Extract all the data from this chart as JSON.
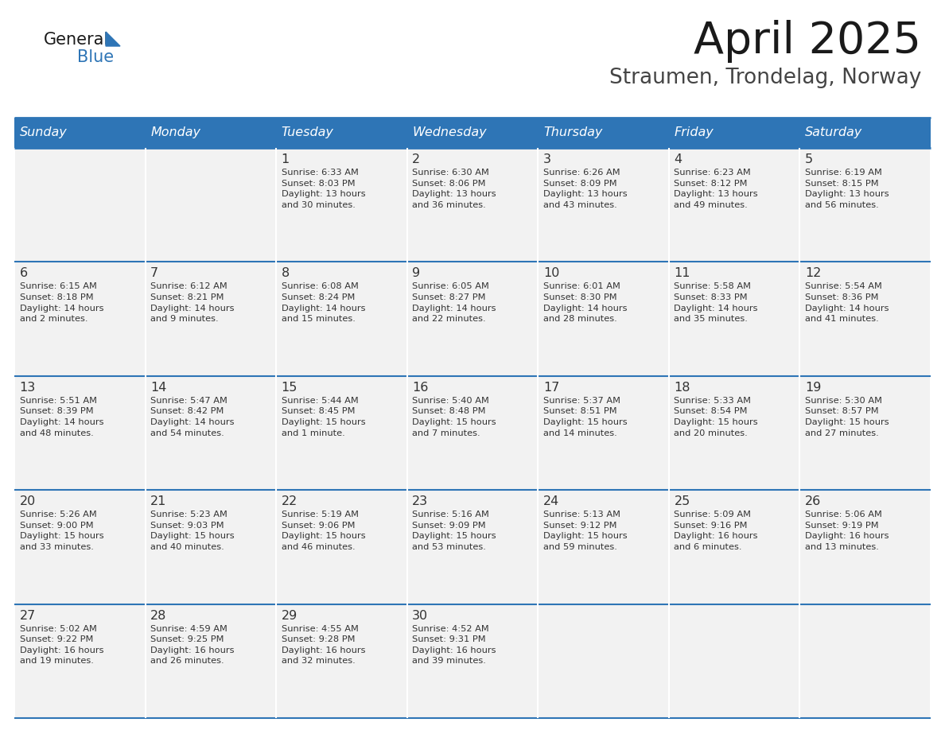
{
  "title": "April 2025",
  "subtitle": "Straumen, Trondelag, Norway",
  "header_color": "#2E75B6",
  "header_text_color": "#FFFFFF",
  "cell_bg": "#F2F2F2",
  "border_color": "#2E75B6",
  "text_color": "#333333",
  "days_of_week": [
    "Sunday",
    "Monday",
    "Tuesday",
    "Wednesday",
    "Thursday",
    "Friday",
    "Saturday"
  ],
  "weeks": [
    [
      {
        "day": "",
        "info": ""
      },
      {
        "day": "",
        "info": ""
      },
      {
        "day": "1",
        "info": "Sunrise: 6:33 AM\nSunset: 8:03 PM\nDaylight: 13 hours\nand 30 minutes."
      },
      {
        "day": "2",
        "info": "Sunrise: 6:30 AM\nSunset: 8:06 PM\nDaylight: 13 hours\nand 36 minutes."
      },
      {
        "day": "3",
        "info": "Sunrise: 6:26 AM\nSunset: 8:09 PM\nDaylight: 13 hours\nand 43 minutes."
      },
      {
        "day": "4",
        "info": "Sunrise: 6:23 AM\nSunset: 8:12 PM\nDaylight: 13 hours\nand 49 minutes."
      },
      {
        "day": "5",
        "info": "Sunrise: 6:19 AM\nSunset: 8:15 PM\nDaylight: 13 hours\nand 56 minutes."
      }
    ],
    [
      {
        "day": "6",
        "info": "Sunrise: 6:15 AM\nSunset: 8:18 PM\nDaylight: 14 hours\nand 2 minutes."
      },
      {
        "day": "7",
        "info": "Sunrise: 6:12 AM\nSunset: 8:21 PM\nDaylight: 14 hours\nand 9 minutes."
      },
      {
        "day": "8",
        "info": "Sunrise: 6:08 AM\nSunset: 8:24 PM\nDaylight: 14 hours\nand 15 minutes."
      },
      {
        "day": "9",
        "info": "Sunrise: 6:05 AM\nSunset: 8:27 PM\nDaylight: 14 hours\nand 22 minutes."
      },
      {
        "day": "10",
        "info": "Sunrise: 6:01 AM\nSunset: 8:30 PM\nDaylight: 14 hours\nand 28 minutes."
      },
      {
        "day": "11",
        "info": "Sunrise: 5:58 AM\nSunset: 8:33 PM\nDaylight: 14 hours\nand 35 minutes."
      },
      {
        "day": "12",
        "info": "Sunrise: 5:54 AM\nSunset: 8:36 PM\nDaylight: 14 hours\nand 41 minutes."
      }
    ],
    [
      {
        "day": "13",
        "info": "Sunrise: 5:51 AM\nSunset: 8:39 PM\nDaylight: 14 hours\nand 48 minutes."
      },
      {
        "day": "14",
        "info": "Sunrise: 5:47 AM\nSunset: 8:42 PM\nDaylight: 14 hours\nand 54 minutes."
      },
      {
        "day": "15",
        "info": "Sunrise: 5:44 AM\nSunset: 8:45 PM\nDaylight: 15 hours\nand 1 minute."
      },
      {
        "day": "16",
        "info": "Sunrise: 5:40 AM\nSunset: 8:48 PM\nDaylight: 15 hours\nand 7 minutes."
      },
      {
        "day": "17",
        "info": "Sunrise: 5:37 AM\nSunset: 8:51 PM\nDaylight: 15 hours\nand 14 minutes."
      },
      {
        "day": "18",
        "info": "Sunrise: 5:33 AM\nSunset: 8:54 PM\nDaylight: 15 hours\nand 20 minutes."
      },
      {
        "day": "19",
        "info": "Sunrise: 5:30 AM\nSunset: 8:57 PM\nDaylight: 15 hours\nand 27 minutes."
      }
    ],
    [
      {
        "day": "20",
        "info": "Sunrise: 5:26 AM\nSunset: 9:00 PM\nDaylight: 15 hours\nand 33 minutes."
      },
      {
        "day": "21",
        "info": "Sunrise: 5:23 AM\nSunset: 9:03 PM\nDaylight: 15 hours\nand 40 minutes."
      },
      {
        "day": "22",
        "info": "Sunrise: 5:19 AM\nSunset: 9:06 PM\nDaylight: 15 hours\nand 46 minutes."
      },
      {
        "day": "23",
        "info": "Sunrise: 5:16 AM\nSunset: 9:09 PM\nDaylight: 15 hours\nand 53 minutes."
      },
      {
        "day": "24",
        "info": "Sunrise: 5:13 AM\nSunset: 9:12 PM\nDaylight: 15 hours\nand 59 minutes."
      },
      {
        "day": "25",
        "info": "Sunrise: 5:09 AM\nSunset: 9:16 PM\nDaylight: 16 hours\nand 6 minutes."
      },
      {
        "day": "26",
        "info": "Sunrise: 5:06 AM\nSunset: 9:19 PM\nDaylight: 16 hours\nand 13 minutes."
      }
    ],
    [
      {
        "day": "27",
        "info": "Sunrise: 5:02 AM\nSunset: 9:22 PM\nDaylight: 16 hours\nand 19 minutes."
      },
      {
        "day": "28",
        "info": "Sunrise: 4:59 AM\nSunset: 9:25 PM\nDaylight: 16 hours\nand 26 minutes."
      },
      {
        "day": "29",
        "info": "Sunrise: 4:55 AM\nSunset: 9:28 PM\nDaylight: 16 hours\nand 32 minutes."
      },
      {
        "day": "30",
        "info": "Sunrise: 4:52 AM\nSunset: 9:31 PM\nDaylight: 16 hours\nand 39 minutes."
      },
      {
        "day": "",
        "info": ""
      },
      {
        "day": "",
        "info": ""
      },
      {
        "day": "",
        "info": ""
      }
    ]
  ],
  "fig_width": 11.88,
  "fig_height": 9.18,
  "dpi": 100
}
